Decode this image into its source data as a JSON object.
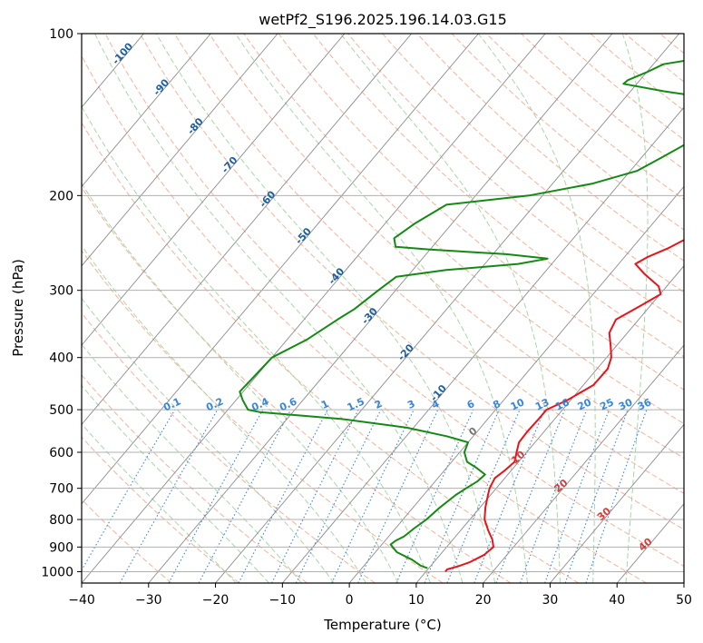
{
  "chart_data": {
    "type": "line",
    "title": "wetPf2_S196.2025.196.14.03.G15",
    "xlabel": "Temperature (°C)",
    "ylabel": "Pressure (hPa)",
    "xlim": [
      -40,
      50
    ],
    "ylim": [
      1050,
      100
    ],
    "y_scale": "log",
    "x_ticks": [
      -40,
      -30,
      -20,
      -10,
      0,
      10,
      20,
      30,
      40,
      50
    ],
    "x_tick_labels": [
      "−40",
      "−30",
      "−20",
      "−10",
      "0",
      "10",
      "20",
      "30",
      "40",
      "50"
    ],
    "y_ticks": [
      100,
      200,
      300,
      400,
      500,
      600,
      700,
      800,
      900,
      1000
    ],
    "y_tick_labels": [
      "100",
      "200",
      "300",
      "400",
      "500",
      "600",
      "700",
      "800",
      "900",
      "1000"
    ],
    "grid": true,
    "colors": {
      "temperature": "#e8141a",
      "dewpoint": "#138a13",
      "dry_adiabat": "#f4a58a",
      "moist_adiabat": "#9fd29f",
      "mixing_ratio": "#3a86d6",
      "isotherm": "#8c8c8c",
      "frame": "#000000"
    },
    "series": [
      {
        "type": "temperature",
        "points": [
          {
            "p": 1000,
            "t": 12.9
          },
          {
            "p": 990,
            "t": 12.9
          },
          {
            "p": 978,
            "t": 14.1
          },
          {
            "p": 960,
            "t": 15.4
          },
          {
            "p": 930,
            "t": 16.6
          },
          {
            "p": 900,
            "t": 17.0
          },
          {
            "p": 870,
            "t": 15.8
          },
          {
            "p": 840,
            "t": 14.2
          },
          {
            "p": 800,
            "t": 12.2
          },
          {
            "p": 760,
            "t": 10.8
          },
          {
            "p": 720,
            "t": 9.6
          },
          {
            "p": 700,
            "t": 9.0
          },
          {
            "p": 670,
            "t": 8.5
          },
          {
            "p": 650,
            "t": 9.0
          },
          {
            "p": 625,
            "t": 9.4
          },
          {
            "p": 600,
            "t": 8.5
          },
          {
            "p": 575,
            "t": 7.6
          },
          {
            "p": 550,
            "t": 7.5
          },
          {
            "p": 520,
            "t": 7.6
          },
          {
            "p": 500,
            "t": 7.6
          },
          {
            "p": 480,
            "t": 9.5
          },
          {
            "p": 450,
            "t": 11.5
          },
          {
            "p": 420,
            "t": 11.6
          },
          {
            "p": 400,
            "t": 10.7
          },
          {
            "p": 380,
            "t": 9.1
          },
          {
            "p": 360,
            "t": 7.3
          },
          {
            "p": 340,
            "t": 6.6
          },
          {
            "p": 320,
            "t": 8.6
          },
          {
            "p": 305,
            "t": 10.1
          },
          {
            "p": 295,
            "t": 8.8
          },
          {
            "p": 280,
            "t": 5.2
          },
          {
            "p": 268,
            "t": 2.5
          },
          {
            "p": 260,
            "t": 3.5
          },
          {
            "p": 250,
            "t": 5.5
          },
          {
            "p": 240,
            "t": 7.0
          },
          {
            "p": 225,
            "t": 7.5
          },
          {
            "p": 200,
            "t": 7.3
          },
          {
            "p": 185,
            "t": 7.5
          },
          {
            "p": 170,
            "t": 7.9
          },
          {
            "p": 155,
            "t": 8.3
          },
          {
            "p": 140,
            "t": 9.3
          },
          {
            "p": 133,
            "t": 11.0
          },
          {
            "p": 128,
            "t": 14.1
          },
          {
            "p": 124,
            "t": 17.1
          },
          {
            "p": 120,
            "t": 18.8
          },
          {
            "p": 116,
            "t": 19.0
          },
          {
            "p": 112,
            "t": 17.3
          },
          {
            "p": 106,
            "t": 15.8
          },
          {
            "p": 100,
            "t": 15.9
          }
        ]
      },
      {
        "type": "dewpoint",
        "points": [
          {
            "p": 985,
            "t": 9.8
          },
          {
            "p": 975,
            "t": 8.5
          },
          {
            "p": 950,
            "t": 6.4
          },
          {
            "p": 920,
            "t": 3.2
          },
          {
            "p": 890,
            "t": 1.3
          },
          {
            "p": 875,
            "t": 1.6
          },
          {
            "p": 860,
            "t": 2.3
          },
          {
            "p": 830,
            "t": 2.8
          },
          {
            "p": 800,
            "t": 3.5
          },
          {
            "p": 760,
            "t": 4.0
          },
          {
            "p": 720,
            "t": 4.8
          },
          {
            "p": 700,
            "t": 5.5
          },
          {
            "p": 680,
            "t": 6.3
          },
          {
            "p": 660,
            "t": 6.6
          },
          {
            "p": 640,
            "t": 4.3
          },
          {
            "p": 625,
            "t": 2.3
          },
          {
            "p": 600,
            "t": 0.7
          },
          {
            "p": 575,
            "t": 0.0
          },
          {
            "p": 560,
            "t": -4.0
          },
          {
            "p": 540,
            "t": -11.0
          },
          {
            "p": 520,
            "t": -22.0
          },
          {
            "p": 505,
            "t": -35.0
          },
          {
            "p": 500,
            "t": -37.0
          },
          {
            "p": 480,
            "t": -39.0
          },
          {
            "p": 463,
            "t": -40.5
          },
          {
            "p": 400,
            "t": -40.0
          },
          {
            "p": 370,
            "t": -37.0
          },
          {
            "p": 340,
            "t": -35.0
          },
          {
            "p": 325,
            "t": -33.8
          },
          {
            "p": 300,
            "t": -32.6
          },
          {
            "p": 283,
            "t": -31.6
          },
          {
            "p": 275,
            "t": -25.0
          },
          {
            "p": 268,
            "t": -15.0
          },
          {
            "p": 262,
            "t": -11.3
          },
          {
            "p": 257,
            "t": -18.0
          },
          {
            "p": 252,
            "t": -30.0
          },
          {
            "p": 249,
            "t": -35.5
          },
          {
            "p": 240,
            "t": -36.8
          },
          {
            "p": 225,
            "t": -35.5
          },
          {
            "p": 208,
            "t": -33.2
          },
          {
            "p": 200,
            "t": -22.0
          },
          {
            "p": 190,
            "t": -14.0
          },
          {
            "p": 180,
            "t": -9.0
          },
          {
            "p": 170,
            "t": -7.0
          },
          {
            "p": 160,
            "t": -5.0
          },
          {
            "p": 148,
            "t": -4.5
          },
          {
            "p": 140,
            "t": -5.0
          },
          {
            "p": 132,
            "t": -6.8
          },
          {
            "p": 128,
            "t": -15.0
          },
          {
            "p": 124,
            "t": -22.0
          },
          {
            "p": 122,
            "t": -21.8
          },
          {
            "p": 118,
            "t": -20.0
          },
          {
            "p": 114,
            "t": -18.5
          },
          {
            "p": 110,
            "t": -12.0
          },
          {
            "p": 106,
            "t": -3.0
          },
          {
            "p": 103,
            "t": 2.5
          },
          {
            "p": 100,
            "t": 5.8
          }
        ]
      }
    ],
    "isotherm_labels": [
      "-100",
      "-90",
      "-80",
      "-70",
      "-60",
      "-50",
      "-40",
      "-30",
      "-20",
      "-10"
    ],
    "mixing_ratio_labels": [
      "0.1",
      "0.2",
      "0.4",
      "0.6",
      "1",
      "1.5",
      "2",
      "3",
      "4",
      "6",
      "8",
      "10",
      "13",
      "16",
      "20",
      "25",
      "30",
      "36"
    ],
    "hot_isotherm_labels": [
      "0",
      "10",
      "20",
      "30",
      "40"
    ]
  }
}
